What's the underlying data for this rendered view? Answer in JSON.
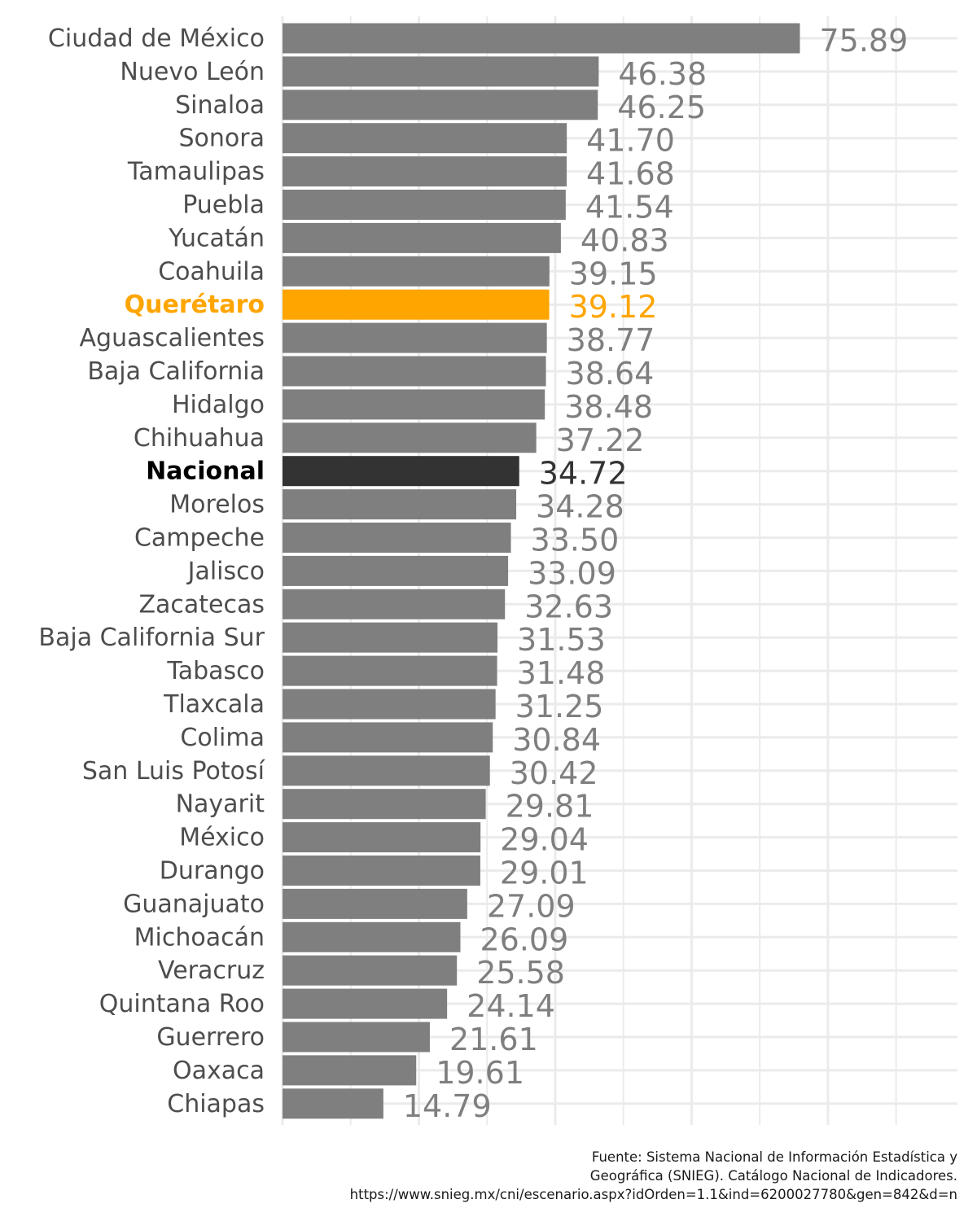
{
  "chart_data": {
    "type": "bar",
    "orientation": "horizontal",
    "categories": [
      "Ciudad de México",
      "Nuevo León",
      "Sinaloa",
      "Sonora",
      "Tamaulipas",
      "Puebla",
      "Yucatán",
      "Coahuila",
      "Querétaro",
      "Aguascalientes",
      "Baja California",
      "Hidalgo",
      "Chihuahua",
      "Nacional",
      "Morelos",
      "Campeche",
      "Jalisco",
      "Zacatecas",
      "Baja California Sur",
      "Tabasco",
      "Tlaxcala",
      "Colima",
      "San Luis Potosí",
      "Nayarit",
      "México",
      "Durango",
      "Guanajuato",
      "Michoacán",
      "Veracruz",
      "Quintana Roo",
      "Guerrero",
      "Oaxaca",
      "Chiapas"
    ],
    "values": [
      75.89,
      46.38,
      46.25,
      41.7,
      41.68,
      41.54,
      40.83,
      39.15,
      39.12,
      38.77,
      38.64,
      38.48,
      37.22,
      34.72,
      34.28,
      33.5,
      33.09,
      32.63,
      31.53,
      31.48,
      31.25,
      30.84,
      30.42,
      29.81,
      29.04,
      29.01,
      27.09,
      26.09,
      25.58,
      24.14,
      21.61,
      19.61,
      14.79
    ],
    "value_labels": [
      "75.89",
      "46.38",
      "46.25",
      "41.70",
      "41.68",
      "41.54",
      "40.83",
      "39.15",
      "39.12",
      "38.77",
      "38.64",
      "38.48",
      "37.22",
      "34.72",
      "34.28",
      "33.50",
      "33.09",
      "32.63",
      "31.53",
      "31.48",
      "31.25",
      "30.84",
      "30.42",
      "29.81",
      "29.04",
      "29.01",
      "27.09",
      "26.09",
      "25.58",
      "24.14",
      "21.61",
      "19.61",
      "14.79"
    ],
    "highlights": {
      "Querétaro": {
        "color": "#FFA500",
        "bold": true
      },
      "Nacional": {
        "color": "#333333",
        "label_color": "#000000",
        "bold": true
      }
    },
    "default_color": "#7F7F7F",
    "xlim": [
      0,
      99
    ],
    "grid": true,
    "xtick_labels_visible": false,
    "title": "",
    "xlabel": "",
    "ylabel": ""
  },
  "caption": {
    "lines": [
      "Fuente: Sistema Nacional de Información Estadística y",
      "Geográfica (SNIEG). Catálogo Nacional de Indicadores.",
      "https://www.snieg.mx/cni/escenario.aspx?idOrden=1.1&ind=6200027780&gen=842&d=n"
    ]
  }
}
